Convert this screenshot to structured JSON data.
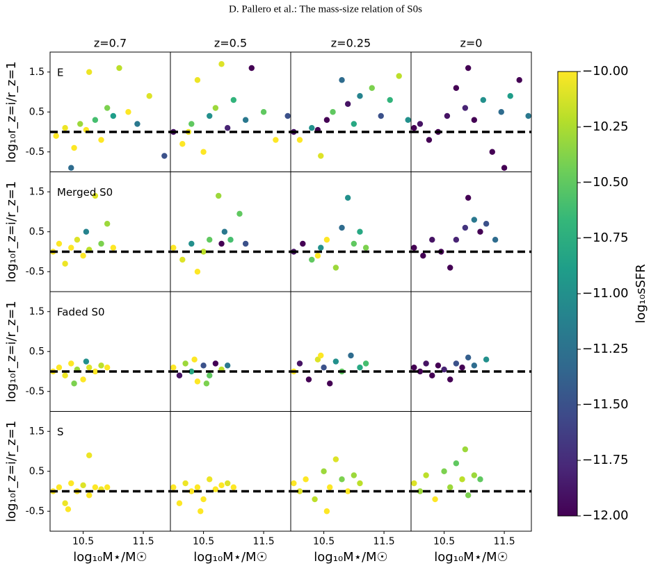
{
  "header": "D. Pallero et al.: The mass-size relation of S0s",
  "chart_data": [
    {
      "type": "scatter",
      "title": "z=0.7",
      "label": "E",
      "ylabel": "log₁₀r_z=i/r_z=1",
      "xlim": [
        9.95,
        11.95
      ],
      "ylim": [
        -1.0,
        2.0
      ],
      "yticks": [
        1.5,
        0.5,
        -0.5
      ],
      "hline": 0,
      "x": [
        10.05,
        10.2,
        10.35,
        10.45,
        10.55,
        10.6,
        10.7,
        10.8,
        10.9,
        11.0,
        11.1,
        11.25,
        11.4,
        11.6,
        11.85,
        10.3
      ],
      "y": [
        -0.1,
        0.1,
        -0.4,
        0.2,
        0.05,
        1.5,
        0.3,
        -0.2,
        0.6,
        0.4,
        1.6,
        0.5,
        0.2,
        0.9,
        -0.6,
        -0.9
      ],
      "c": [
        -10.0,
        -10.05,
        -10.0,
        -10.3,
        -10.0,
        -10.05,
        -10.6,
        -10.0,
        -10.4,
        -10.9,
        -10.2,
        -10.0,
        -11.2,
        -10.1,
        -11.5,
        -11.3
      ]
    },
    {
      "type": "scatter",
      "title": "z=0.5",
      "xlim": [
        9.95,
        11.95
      ],
      "ylim": [
        -1.0,
        2.0
      ],
      "hline": 0,
      "x": [
        10.0,
        10.15,
        10.3,
        10.4,
        10.5,
        10.6,
        10.7,
        10.8,
        10.9,
        11.0,
        11.2,
        11.3,
        11.5,
        11.7,
        11.9,
        10.25
      ],
      "y": [
        0.0,
        -0.3,
        0.2,
        1.3,
        -0.5,
        0.4,
        0.6,
        1.7,
        0.1,
        0.8,
        0.3,
        1.6,
        0.5,
        -0.2,
        0.4,
        0.0
      ],
      "c": [
        -11.9,
        -10.0,
        -10.5,
        -10.05,
        -10.0,
        -11.0,
        -10.3,
        -10.1,
        -11.8,
        -10.7,
        -11.2,
        -12.0,
        -10.5,
        -10.0,
        -11.5,
        -10.05
      ]
    },
    {
      "type": "scatter",
      "title": "z=0.25",
      "xlim": [
        9.95,
        11.95
      ],
      "ylim": [
        -1.0,
        2.0
      ],
      "hline": 0,
      "x": [
        10.0,
        10.1,
        10.3,
        10.45,
        10.55,
        10.65,
        10.8,
        10.9,
        11.0,
        11.1,
        11.3,
        11.45,
        11.6,
        11.75,
        11.9,
        10.4
      ],
      "y": [
        0.0,
        -0.2,
        0.1,
        -0.6,
        0.3,
        0.5,
        1.3,
        0.7,
        0.2,
        0.9,
        1.1,
        0.4,
        0.8,
        1.4,
        0.3,
        0.05
      ],
      "c": [
        -11.9,
        -10.0,
        -11.0,
        -10.1,
        -12.0,
        -10.5,
        -11.3,
        -11.9,
        -10.8,
        -11.1,
        -10.4,
        -11.5,
        -10.7,
        -10.2,
        -11.0,
        -12.0
      ]
    },
    {
      "type": "scatter",
      "title": "z=0",
      "xlim": [
        9.95,
        11.95
      ],
      "ylim": [
        -1.0,
        2.0
      ],
      "hline": 0,
      "x": [
        10.0,
        10.1,
        10.25,
        10.4,
        10.55,
        10.7,
        10.85,
        11.0,
        11.15,
        11.3,
        11.45,
        11.6,
        11.75,
        11.9,
        10.9,
        11.5
      ],
      "y": [
        0.1,
        0.2,
        -0.2,
        0.0,
        0.4,
        1.1,
        0.6,
        0.3,
        0.8,
        -0.5,
        0.5,
        0.9,
        1.3,
        0.4,
        1.6,
        -0.9
      ],
      "c": [
        -12.0,
        -11.9,
        -12.0,
        -12.0,
        -11.9,
        -12.0,
        -11.8,
        -12.0,
        -11.0,
        -12.0,
        -11.3,
        -10.9,
        -12.0,
        -11.2,
        -12.0,
        -12.0
      ]
    },
    {
      "type": "scatter",
      "label": "Merged S0",
      "ylabel": "log₁₀r_z=i/r_z=1",
      "xlim": [
        9.95,
        11.95
      ],
      "ylim": [
        -1.0,
        2.0
      ],
      "yticks": [
        1.5,
        0.5,
        -0.5
      ],
      "hline": 0,
      "x": [
        10.0,
        10.1,
        10.2,
        10.3,
        10.4,
        10.5,
        10.6,
        10.7,
        10.8,
        10.9,
        11.0,
        10.55
      ],
      "y": [
        0.0,
        0.2,
        -0.3,
        0.1,
        0.3,
        -0.1,
        0.05,
        1.4,
        0.2,
        0.7,
        0.1,
        0.5
      ],
      "c": [
        -10.0,
        -10.0,
        -10.05,
        -10.0,
        -10.1,
        -10.0,
        -10.2,
        -10.1,
        -10.4,
        -10.3,
        -10.0,
        -11.1
      ]
    },
    {
      "type": "scatter",
      "xlim": [
        9.95,
        11.95
      ],
      "ylim": [
        -1.0,
        2.0
      ],
      "hline": 0,
      "x": [
        10.0,
        10.15,
        10.3,
        10.4,
        10.5,
        10.6,
        10.75,
        10.85,
        10.95,
        11.1,
        11.2,
        10.8
      ],
      "y": [
        0.1,
        -0.2,
        0.2,
        -0.5,
        0.0,
        0.3,
        1.4,
        0.5,
        0.3,
        0.95,
        0.2,
        0.2
      ],
      "c": [
        -10.0,
        -10.1,
        -11.0,
        -10.0,
        -10.2,
        -10.5,
        -10.3,
        -11.2,
        -10.6,
        -10.5,
        -11.5,
        -12.0
      ]
    },
    {
      "type": "scatter",
      "xlim": [
        9.95,
        11.95
      ],
      "ylim": [
        -1.0,
        2.0
      ],
      "hline": 0,
      "x": [
        10.0,
        10.15,
        10.3,
        10.45,
        10.55,
        10.7,
        10.8,
        10.9,
        11.0,
        11.1,
        11.2,
        10.4
      ],
      "y": [
        0.0,
        0.2,
        -0.2,
        0.1,
        0.3,
        -0.4,
        0.6,
        1.35,
        0.2,
        0.5,
        0.1,
        -0.1
      ],
      "c": [
        -11.9,
        -12.0,
        -10.5,
        -11.0,
        -10.0,
        -10.3,
        -11.3,
        -11.0,
        -10.5,
        -10.8,
        -10.4,
        -10.0
      ]
    },
    {
      "type": "scatter",
      "xlim": [
        9.95,
        11.95
      ],
      "ylim": [
        -1.0,
        2.0
      ],
      "hline": 0,
      "x": [
        10.0,
        10.15,
        10.3,
        10.45,
        10.6,
        10.7,
        10.85,
        11.0,
        11.1,
        11.2,
        11.35,
        10.9
      ],
      "y": [
        0.1,
        -0.1,
        0.3,
        0.0,
        -0.4,
        0.3,
        0.6,
        0.8,
        0.5,
        0.7,
        0.3,
        1.35
      ],
      "c": [
        -12.0,
        -12.0,
        -11.9,
        -12.0,
        -12.0,
        -11.8,
        -11.7,
        -11.2,
        -12.0,
        -11.5,
        -11.3,
        -12.0
      ]
    },
    {
      "type": "scatter",
      "label": "Faded S0",
      "ylabel": "log₁₀r_z=i/r_z=1",
      "xlim": [
        9.95,
        11.95
      ],
      "ylim": [
        -1.0,
        2.0
      ],
      "yticks": [
        1.5,
        0.5,
        -0.5
      ],
      "hline": 0,
      "x": [
        10.0,
        10.1,
        10.2,
        10.3,
        10.4,
        10.5,
        10.6,
        10.7,
        10.8,
        10.9,
        10.35,
        10.55
      ],
      "y": [
        0.0,
        0.1,
        -0.1,
        0.2,
        0.05,
        -0.2,
        0.1,
        0.0,
        0.15,
        0.1,
        -0.3,
        0.25
      ],
      "c": [
        -10.0,
        -10.0,
        -10.05,
        -10.0,
        -10.3,
        -10.0,
        -10.1,
        -10.0,
        -10.2,
        -10.0,
        -10.4,
        -11.0
      ]
    },
    {
      "type": "scatter",
      "xlim": [
        9.95,
        11.95
      ],
      "ylim": [
        -1.0,
        2.0
      ],
      "hline": 0,
      "x": [
        10.0,
        10.1,
        10.2,
        10.3,
        10.4,
        10.5,
        10.6,
        10.7,
        10.8,
        10.9,
        10.35,
        10.55
      ],
      "y": [
        0.1,
        -0.1,
        0.2,
        0.0,
        -0.25,
        0.15,
        -0.1,
        0.2,
        0.05,
        0.15,
        0.3,
        -0.3
      ],
      "c": [
        -10.0,
        -11.9,
        -10.3,
        -10.8,
        -10.0,
        -11.5,
        -10.5,
        -12.0,
        -10.2,
        -11.2,
        -10.0,
        -10.4
      ]
    },
    {
      "type": "scatter",
      "xlim": [
        9.95,
        11.95
      ],
      "ylim": [
        -1.0,
        2.0
      ],
      "hline": 0,
      "x": [
        10.0,
        10.1,
        10.25,
        10.4,
        10.5,
        10.6,
        10.7,
        10.8,
        10.95,
        11.1,
        11.2,
        10.45
      ],
      "y": [
        0.0,
        0.2,
        -0.2,
        0.3,
        0.1,
        -0.3,
        0.25,
        0.0,
        0.4,
        0.1,
        0.2,
        0.4
      ],
      "c": [
        -10.0,
        -11.9,
        -12.0,
        -10.1,
        -11.5,
        -12.0,
        -11.0,
        -10.5,
        -11.3,
        -10.8,
        -10.6,
        -10.0
      ]
    },
    {
      "type": "scatter",
      "xlim": [
        9.95,
        11.95
      ],
      "ylim": [
        -1.0,
        2.0
      ],
      "hline": 0,
      "x": [
        10.0,
        10.1,
        10.2,
        10.3,
        10.4,
        10.5,
        10.6,
        10.7,
        10.8,
        10.9,
        11.0,
        11.2
      ],
      "y": [
        0.1,
        0.0,
        0.2,
        -0.1,
        0.15,
        0.05,
        -0.2,
        0.2,
        0.1,
        0.35,
        0.15,
        0.3
      ],
      "c": [
        -12.0,
        -12.0,
        -11.9,
        -12.0,
        -12.0,
        -11.8,
        -12.0,
        -11.5,
        -12.0,
        -11.4,
        -11.3,
        -11.0
      ]
    },
    {
      "type": "scatter",
      "label": "S",
      "ylabel": "log₁₀r_z=i/r_z=1",
      "xlabel": "log₁₀M⋆/M☉",
      "xlim": [
        9.95,
        11.95
      ],
      "ylim": [
        -1.0,
        2.0
      ],
      "xticks": [
        10.5,
        11.5
      ],
      "yticks": [
        1.5,
        0.5,
        -0.5
      ],
      "hline": 0,
      "x": [
        10.0,
        10.1,
        10.2,
        10.3,
        10.4,
        10.5,
        10.6,
        10.7,
        10.8,
        10.9,
        10.25,
        10.6
      ],
      "y": [
        0.0,
        0.1,
        -0.3,
        0.2,
        0.0,
        0.15,
        -0.1,
        0.1,
        0.05,
        0.1,
        -0.45,
        0.9
      ],
      "c": [
        -10.0,
        -10.0,
        -10.05,
        -10.0,
        -10.0,
        -10.1,
        -10.0,
        -10.0,
        -10.05,
        -10.0,
        -10.0,
        -10.05
      ]
    },
    {
      "type": "scatter",
      "xlabel": "log₁₀M⋆/M☉",
      "xlim": [
        9.95,
        11.95
      ],
      "ylim": [
        -1.0,
        2.0
      ],
      "xticks": [
        10.5,
        11.5
      ],
      "hline": 0,
      "x": [
        10.0,
        10.1,
        10.2,
        10.3,
        10.4,
        10.5,
        10.6,
        10.7,
        10.8,
        10.9,
        11.0,
        10.45
      ],
      "y": [
        0.1,
        -0.3,
        0.2,
        0.0,
        0.1,
        -0.2,
        0.3,
        0.05,
        0.15,
        0.2,
        0.1,
        -0.5
      ],
      "c": [
        -10.0,
        -10.0,
        -10.05,
        -10.0,
        -10.0,
        -10.0,
        -10.05,
        -10.0,
        -10.0,
        -10.1,
        -10.0,
        -10.0
      ]
    },
    {
      "type": "scatter",
      "xlabel": "log₁₀M⋆/M☉",
      "xlim": [
        9.95,
        11.95
      ],
      "ylim": [
        -1.0,
        2.0
      ],
      "xticks": [
        10.5,
        11.5
      ],
      "hline": 0,
      "x": [
        10.0,
        10.1,
        10.2,
        10.35,
        10.5,
        10.6,
        10.7,
        10.8,
        10.9,
        11.0,
        11.1,
        10.55
      ],
      "y": [
        0.2,
        0.0,
        0.3,
        -0.2,
        0.5,
        0.1,
        0.8,
        0.3,
        0.0,
        0.4,
        0.2,
        -0.5
      ],
      "c": [
        -10.0,
        -10.1,
        -10.0,
        -10.2,
        -10.3,
        -10.0,
        -10.1,
        -10.4,
        -10.0,
        -10.3,
        -10.2,
        -10.0
      ]
    },
    {
      "type": "scatter",
      "xlabel": "log₁₀M⋆/M☉",
      "xlim": [
        9.95,
        11.95
      ],
      "ylim": [
        -1.0,
        2.0
      ],
      "xticks": [
        10.5,
        11.5
      ],
      "hline": 0,
      "x": [
        10.0,
        10.1,
        10.2,
        10.35,
        10.5,
        10.6,
        10.7,
        10.8,
        10.9,
        11.0,
        11.1,
        10.85
      ],
      "y": [
        0.2,
        0.0,
        0.4,
        -0.2,
        0.5,
        0.1,
        0.7,
        0.3,
        -0.1,
        0.4,
        0.3,
        1.05
      ],
      "c": [
        -10.1,
        -10.3,
        -10.2,
        -10.0,
        -10.4,
        -10.3,
        -10.5,
        -10.2,
        -10.4,
        -10.3,
        -10.5,
        -10.3
      ]
    }
  ],
  "colorbar": {
    "label": "log₁₀sSFR",
    "colormap": "viridis",
    "lim": [
      -12,
      -10
    ],
    "ticks": [
      {
        "value": -10,
        "label": "−10.00"
      },
      {
        "value": -10.25,
        "label": "−10.25"
      },
      {
        "value": -10.5,
        "label": "−10.50"
      },
      {
        "value": -10.75,
        "label": "−10.75"
      },
      {
        "value": -11,
        "label": "−11.00"
      },
      {
        "value": -11.25,
        "label": "−11.25"
      },
      {
        "value": -11.5,
        "label": "−11.50"
      },
      {
        "value": -11.75,
        "label": "−11.75"
      },
      {
        "value": -12,
        "label": "−12.00"
      }
    ]
  }
}
